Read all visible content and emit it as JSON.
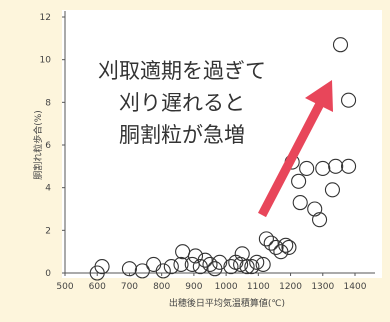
{
  "chart_data": {
    "type": "scatter",
    "xlabel": "出穂後日平均気温積算値(℃)",
    "ylabel": "胴割れ粒歩合(%)",
    "xlim": [
      500,
      1400
    ],
    "ylim": [
      0,
      12
    ],
    "x_ticks": [
      "500",
      "600",
      "700",
      "800",
      "900",
      "1000",
      "1100",
      "1200",
      "1300",
      "1400"
    ],
    "y_ticks": [
      "0",
      "2",
      "4",
      "6",
      "8",
      "10",
      "12"
    ],
    "annotation": [
      "刈取適期を過ぎて",
      "刈り遅れると",
      "胴割粒が急増"
    ],
    "arrow_color": "#e8465a",
    "marker": "hollow-circle",
    "points": [
      {
        "x": 600,
        "y": 0.0
      },
      {
        "x": 615,
        "y": 0.3
      },
      {
        "x": 700,
        "y": 0.2
      },
      {
        "x": 740,
        "y": 0.1
      },
      {
        "x": 775,
        "y": 0.4
      },
      {
        "x": 805,
        "y": 0.1
      },
      {
        "x": 830,
        "y": 0.3
      },
      {
        "x": 860,
        "y": 0.4
      },
      {
        "x": 865,
        "y": 1.0
      },
      {
        "x": 895,
        "y": 0.4
      },
      {
        "x": 905,
        "y": 0.8
      },
      {
        "x": 920,
        "y": 0.3
      },
      {
        "x": 935,
        "y": 0.6
      },
      {
        "x": 950,
        "y": 0.4
      },
      {
        "x": 965,
        "y": 0.2
      },
      {
        "x": 980,
        "y": 0.5
      },
      {
        "x": 1015,
        "y": 0.3
      },
      {
        "x": 1030,
        "y": 0.5
      },
      {
        "x": 1045,
        "y": 0.4
      },
      {
        "x": 1050,
        "y": 0.9
      },
      {
        "x": 1065,
        "y": 0.3
      },
      {
        "x": 1080,
        "y": 0.3
      },
      {
        "x": 1095,
        "y": 0.5
      },
      {
        "x": 1115,
        "y": 0.4
      },
      {
        "x": 1125,
        "y": 1.6
      },
      {
        "x": 1140,
        "y": 1.4
      },
      {
        "x": 1155,
        "y": 1.2
      },
      {
        "x": 1170,
        "y": 1.0
      },
      {
        "x": 1185,
        "y": 1.3
      },
      {
        "x": 1195,
        "y": 1.2
      },
      {
        "x": 1205,
        "y": 5.2
      },
      {
        "x": 1225,
        "y": 4.3
      },
      {
        "x": 1230,
        "y": 3.3
      },
      {
        "x": 1250,
        "y": 4.9
      },
      {
        "x": 1275,
        "y": 3.0
      },
      {
        "x": 1290,
        "y": 2.5
      },
      {
        "x": 1300,
        "y": 4.9
      },
      {
        "x": 1330,
        "y": 3.9
      },
      {
        "x": 1340,
        "y": 5.0
      },
      {
        "x": 1355,
        "y": 10.7
      },
      {
        "x": 1380,
        "y": 8.1
      },
      {
        "x": 1380,
        "y": 5.0
      }
    ]
  }
}
